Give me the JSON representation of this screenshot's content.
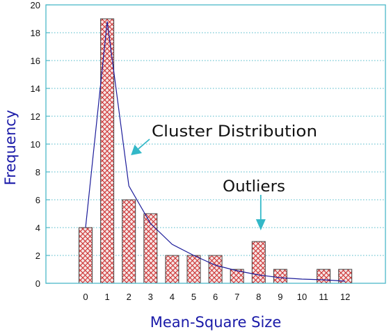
{
  "chart_data": {
    "type": "bar",
    "xlabel": "Mean-Square Size",
    "ylabel": "Frequency",
    "ylim": [
      0,
      20
    ],
    "yticks": [
      0,
      2,
      4,
      6,
      8,
      10,
      12,
      14,
      16,
      18,
      20
    ],
    "categories": [
      "0",
      "1",
      "2",
      "3",
      "4",
      "5",
      "6",
      "7",
      "8",
      "9",
      "10",
      "11",
      "12"
    ],
    "series": [
      {
        "type": "bar",
        "values": [
          4,
          19,
          6,
          5,
          2,
          2,
          2,
          1,
          3,
          1,
          0,
          1,
          1
        ]
      },
      {
        "type": "line",
        "x": [
          0,
          1,
          2,
          3,
          4,
          5,
          6,
          7,
          8,
          9,
          10,
          11,
          12
        ],
        "values": [
          4.0,
          18.8,
          7.0,
          4.3,
          2.8,
          2.0,
          1.3,
          0.9,
          0.6,
          0.4,
          0.3,
          0.25,
          0.15
        ]
      }
    ],
    "annotations": [
      {
        "text": "Cluster Distribution",
        "target": {
          "x": 2,
          "y": 9
        }
      },
      {
        "text": "Outliers",
        "target": {
          "x": 8,
          "y": 3.8
        }
      }
    ],
    "grid": "horizontal dotted",
    "colors": {
      "frame": "#4cb8c8",
      "grid": "#4cb8c8",
      "bar_fill": "#f6e6e6",
      "bar_hatch": "#cc3030",
      "bar_edge": "#444444",
      "line": "#1c1c9a",
      "arrow": "#33b8c8",
      "axis_title": "#1a1aa8"
    }
  }
}
